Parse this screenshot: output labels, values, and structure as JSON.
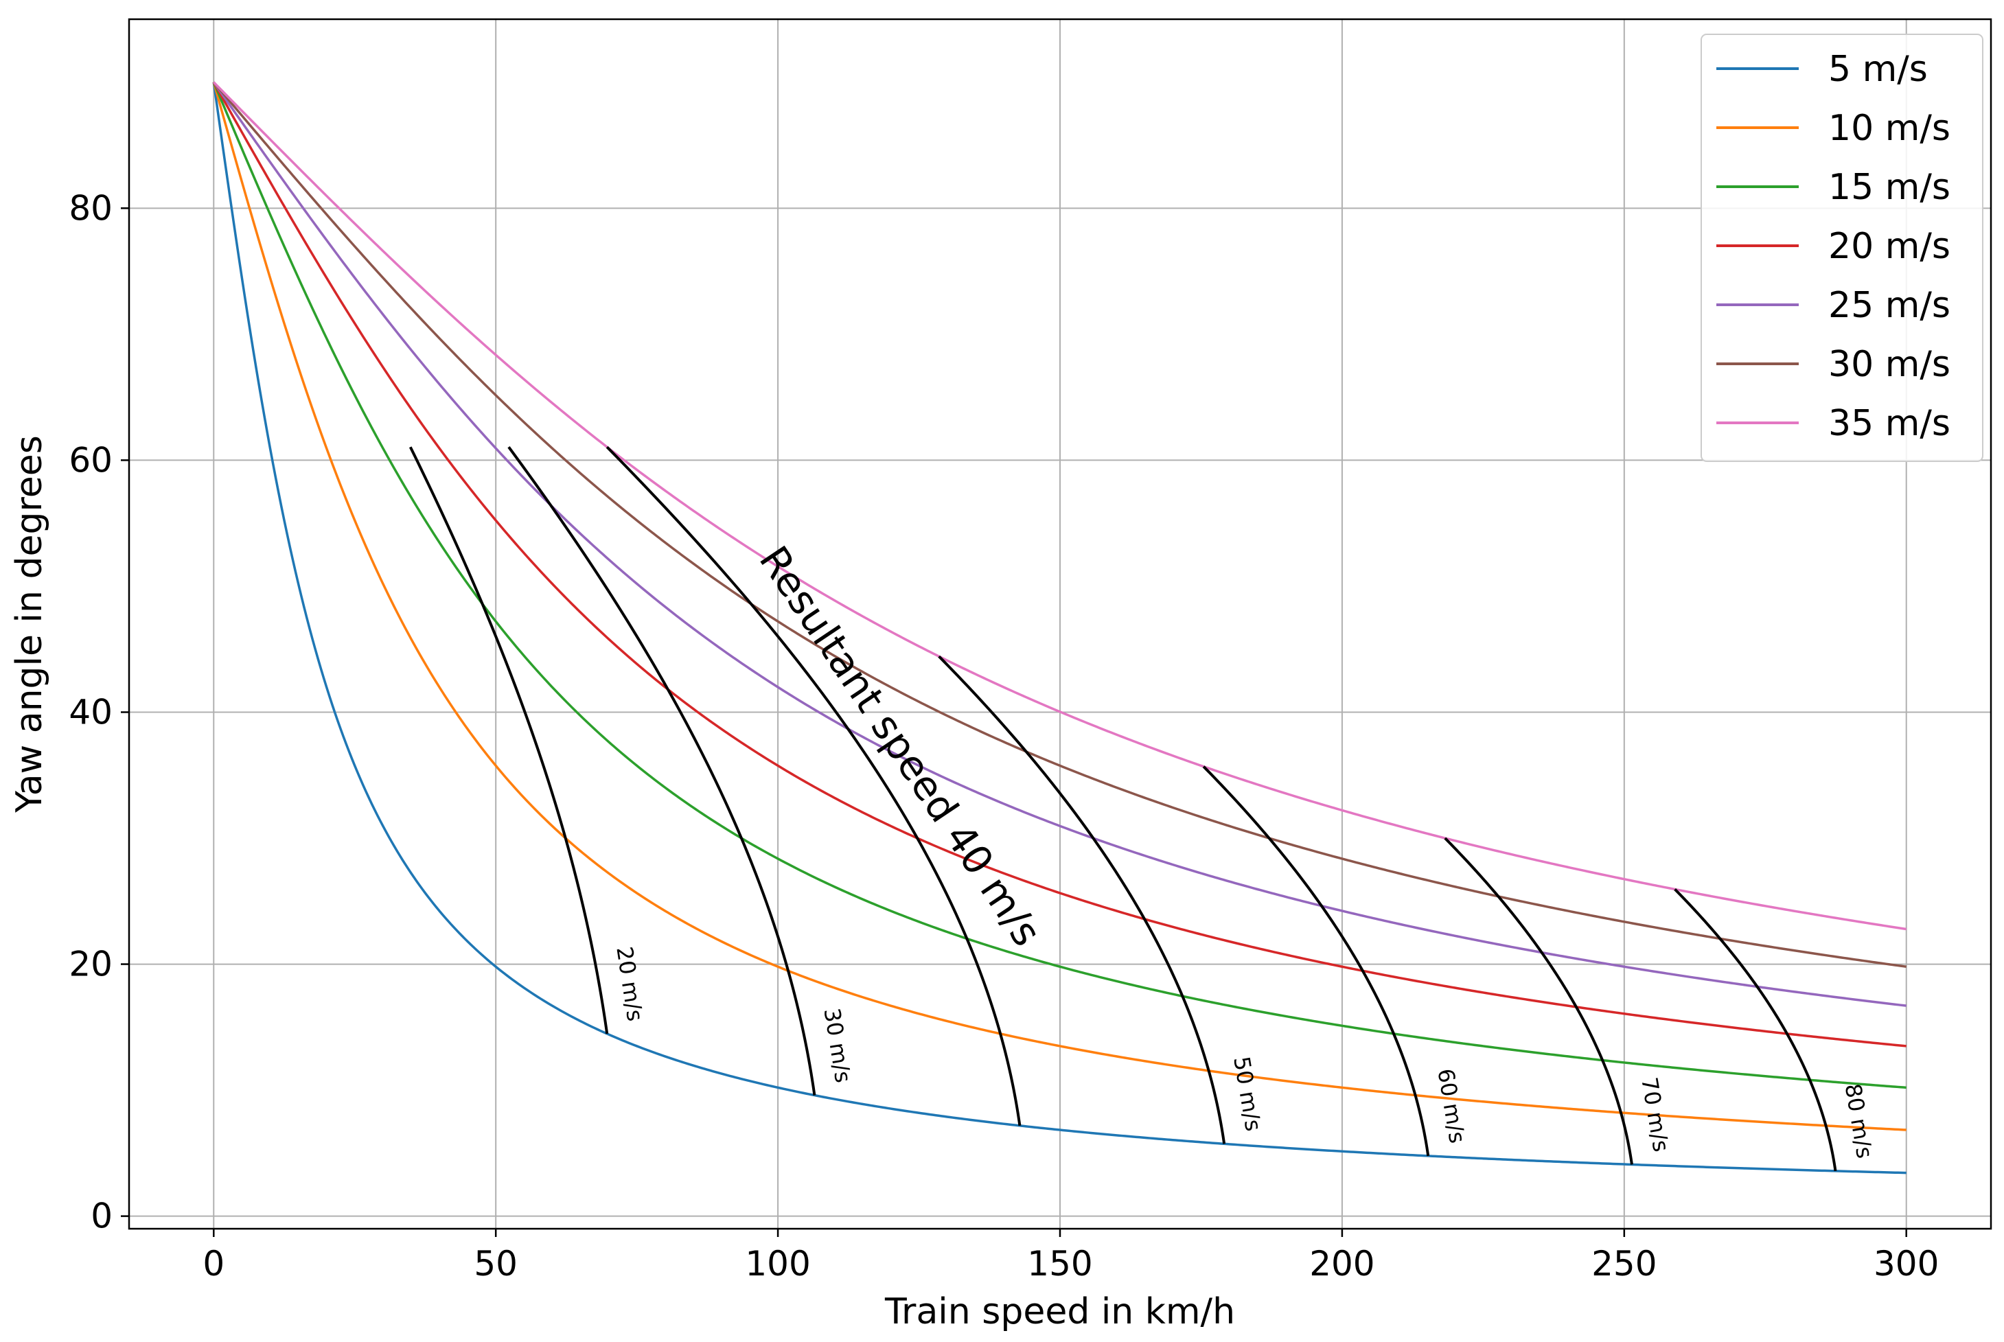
{
  "chart_data": {
    "type": "line",
    "title": "",
    "xlabel": "Train speed in km/h",
    "ylabel": "Yaw angle in degrees",
    "xlim": [
      -15,
      315
    ],
    "ylim": [
      -1,
      95
    ],
    "xticks": [
      "0",
      "50",
      "100",
      "150",
      "200",
      "250",
      "300"
    ],
    "yticks": [
      "0",
      "20",
      "40",
      "60",
      "80"
    ],
    "grid": true,
    "legend_position": "top-right",
    "series": [
      {
        "name": "5 m/s",
        "wind_speed_ms": 5,
        "color": "#1f77b4",
        "x_range": [
          0,
          300
        ]
      },
      {
        "name": "10 m/s",
        "wind_speed_ms": 10,
        "color": "#ff7f0e",
        "x_range": [
          0,
          300
        ]
      },
      {
        "name": "15 m/s",
        "wind_speed_ms": 15,
        "color": "#2ca02c",
        "x_range": [
          0,
          300
        ]
      },
      {
        "name": "20 m/s",
        "wind_speed_ms": 20,
        "color": "#d62728",
        "x_range": [
          0,
          300
        ]
      },
      {
        "name": "25 m/s",
        "wind_speed_ms": 25,
        "color": "#9467bd",
        "x_range": [
          0,
          300
        ]
      },
      {
        "name": "30 m/s",
        "wind_speed_ms": 30,
        "color": "#8c564b",
        "x_range": [
          0,
          300
        ]
      },
      {
        "name": "35 m/s",
        "wind_speed_ms": 35,
        "color": "#e377c2",
        "x_range": [
          0,
          300
        ]
      }
    ],
    "resultant_speed_lines": [
      {
        "label": "20 m/s",
        "resultant_ms": 20,
        "label_size": "small"
      },
      {
        "label": "30 m/s",
        "resultant_ms": 30,
        "label_size": "small"
      },
      {
        "label": "Resultant speed 40 m/s",
        "resultant_ms": 40,
        "label_size": "large"
      },
      {
        "label": "50 m/s",
        "resultant_ms": 50,
        "label_size": "small"
      },
      {
        "label": "60 m/s",
        "resultant_ms": 60,
        "label_size": "small"
      },
      {
        "label": "70 m/s",
        "resultant_ms": 70,
        "label_size": "small"
      },
      {
        "label": "80 m/s",
        "resultant_ms": 80,
        "label_size": "small"
      }
    ],
    "resultant_line_color": "#000000"
  }
}
